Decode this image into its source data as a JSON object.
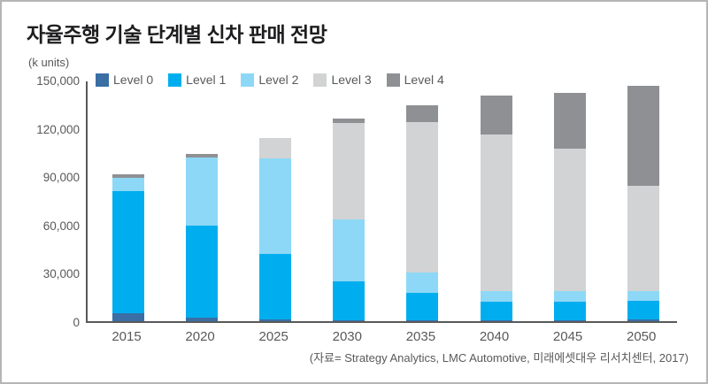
{
  "title": "자율주행 기술 단계별 신차 판매 전망",
  "unit_label": "(k units)",
  "source": "(자료= Strategy Analytics, LMC Automotive, 미래에셋대우 리서치센터, 2017)",
  "colors": {
    "level0": "#3A6EA5",
    "level1": "#00AEEF",
    "level2": "#8DD8F6",
    "level3": "#D2D3D4",
    "level4": "#8E9093",
    "axis": "#58595B",
    "text": "#58595B",
    "title_text": "#1D1D1F",
    "frame_border": "#B3B5B7"
  },
  "chart_data": {
    "type": "bar",
    "stacked": true,
    "title": "자율주행 기술 단계별 신차 판매 전망",
    "ylabel": "(k units)",
    "xlabel": "",
    "grid": false,
    "legend_position": "top-inside",
    "ylim": [
      0,
      150000
    ],
    "yticks": [
      0,
      30000,
      60000,
      90000,
      120000,
      150000
    ],
    "ytick_labels": [
      "0",
      "30,000",
      "60,000",
      "90,000",
      "120,000",
      "150,000"
    ],
    "categories": [
      "2015",
      "2020",
      "2025",
      "2030",
      "2035",
      "2040",
      "2045",
      "2050"
    ],
    "series": [
      {
        "name": "Level 0",
        "color": "#3A6EA5",
        "values": [
          5000,
          2500,
          1000,
          500,
          500,
          500,
          500,
          1000
        ]
      },
      {
        "name": "Level 1",
        "color": "#00AEEF",
        "values": [
          76000,
          57000,
          41000,
          24500,
          17000,
          11500,
          11500,
          11500
        ]
      },
      {
        "name": "Level 2",
        "color": "#8DD8F6",
        "values": [
          8000,
          42000,
          59000,
          38000,
          12500,
          7000,
          7000,
          6500
        ]
      },
      {
        "name": "Level 3",
        "color": "#D2D3D4",
        "values": [
          0,
          0,
          13000,
          60000,
          93500,
          97000,
          88000,
          65000
        ]
      },
      {
        "name": "Level 4",
        "color": "#8E9093",
        "values": [
          2000,
          2500,
          0,
          3000,
          10500,
          24000,
          35000,
          62000
        ]
      }
    ],
    "totals": [
      91000,
      104000,
      114000,
      126000,
      134000,
      140000,
      142000,
      146000
    ]
  }
}
